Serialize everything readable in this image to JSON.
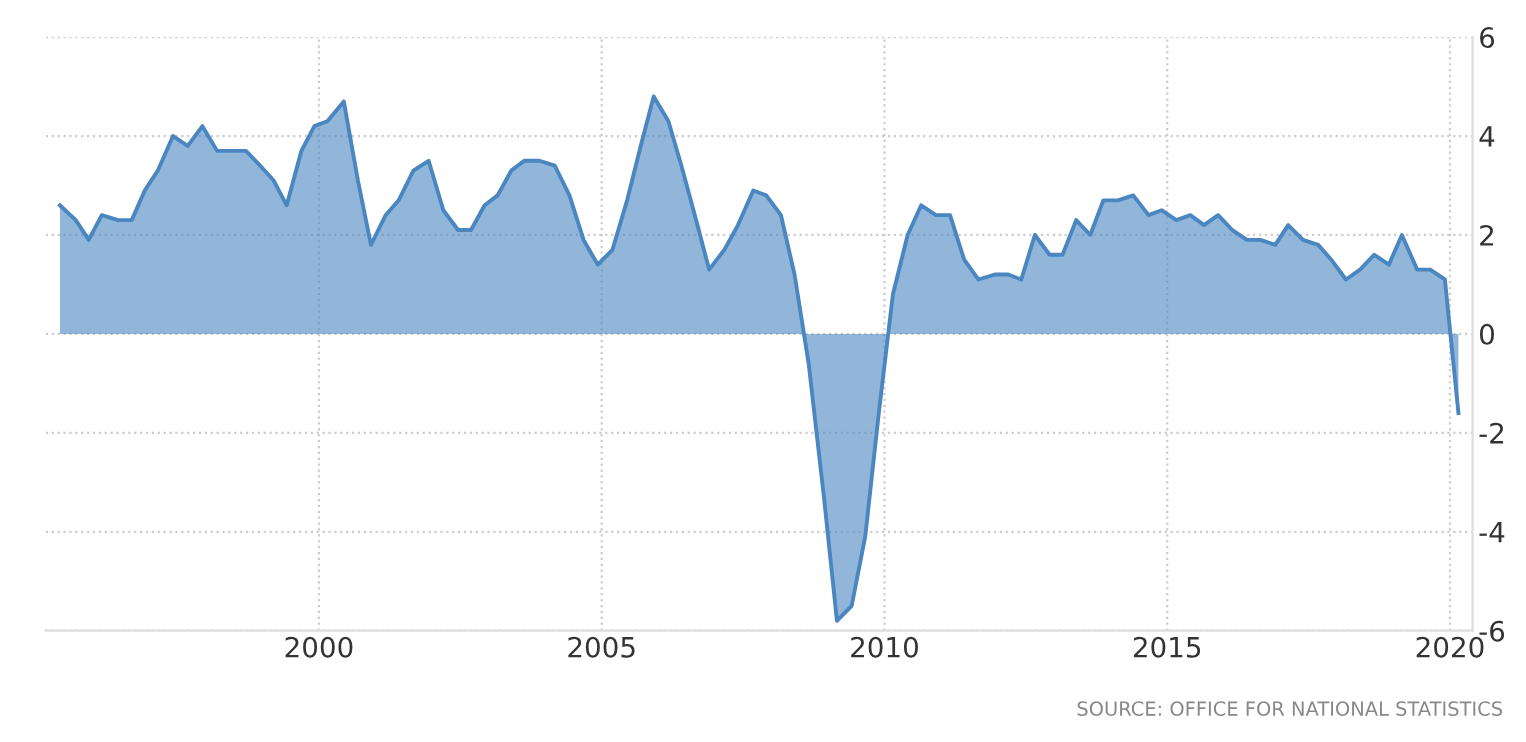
{
  "chart_data": {
    "type": "area",
    "x": [
      1995.42,
      1995.7,
      1995.93,
      1996.16,
      1996.45,
      1996.69,
      1996.92,
      1997.15,
      1997.42,
      1997.68,
      1997.94,
      1998.2,
      1998.71,
      1998.96,
      1999.2,
      1999.43,
      1999.69,
      1999.92,
      2000.15,
      2000.44,
      2000.69,
      2000.92,
      2001.18,
      2001.41,
      2001.67,
      2001.94,
      2002.2,
      2002.46,
      2002.69,
      2002.93,
      2003.16,
      2003.4,
      2003.63,
      2003.9,
      2004.17,
      2004.43,
      2004.68,
      2004.93,
      2005.19,
      2005.45,
      2005.69,
      2005.92,
      2006.18,
      2006.41,
      2006.67,
      2006.9,
      2007.17,
      2007.41,
      2007.68,
      2007.91,
      2008.17,
      2008.41,
      2008.66,
      2008.93,
      2009.16,
      2009.42,
      2009.66,
      2009.9,
      2010.15,
      2010.41,
      2010.65,
      2010.91,
      2011.16,
      2011.41,
      2011.66,
      2011.95,
      2012.19,
      2012.42,
      2012.66,
      2012.92,
      2013.15,
      2013.39,
      2013.64,
      2013.87,
      2014.13,
      2014.4,
      2014.67,
      2014.9,
      2015.16,
      2015.41,
      2015.65,
      2015.9,
      2016.15,
      2016.41,
      2016.65,
      2016.91,
      2017.14,
      2017.4,
      2017.67,
      2017.9,
      2018.16,
      2018.41,
      2018.66,
      2018.92,
      2019.15,
      2019.42,
      2019.65,
      2019.91,
      2020.15
    ],
    "values": [
      2.6,
      2.3,
      1.9,
      2.4,
      2.3,
      2.3,
      2.9,
      3.3,
      4.0,
      3.8,
      4.2,
      3.7,
      3.7,
      3.4,
      3.1,
      2.6,
      3.7,
      4.2,
      4.3,
      4.7,
      3.1,
      1.8,
      2.4,
      2.7,
      3.3,
      3.5,
      2.5,
      2.1,
      2.1,
      2.6,
      2.8,
      3.3,
      3.5,
      3.5,
      3.4,
      2.8,
      1.9,
      1.4,
      1.7,
      2.7,
      3.8,
      4.8,
      4.3,
      3.4,
      2.3,
      1.3,
      1.7,
      2.2,
      2.9,
      2.8,
      2.4,
      1.2,
      -0.6,
      -3.3,
      -5.8,
      -5.5,
      -4.1,
      -1.6,
      0.8,
      2.0,
      2.6,
      2.4,
      2.4,
      1.5,
      1.1,
      1.2,
      1.2,
      1.1,
      2.0,
      1.6,
      1.6,
      2.3,
      2.0,
      2.7,
      2.7,
      2.8,
      2.4,
      2.5,
      2.3,
      2.4,
      2.2,
      2.4,
      2.1,
      1.9,
      1.9,
      1.8,
      2.2,
      1.9,
      1.8,
      1.5,
      1.1,
      1.3,
      1.6,
      1.4,
      2.0,
      1.3,
      1.3,
      1.1,
      -1.6
    ],
    "color": "#4a86c0",
    "xlim": [
      1995.17,
      2020.4
    ],
    "xticks": [
      2000,
      2005,
      2010,
      2015,
      2020
    ],
    "ylim": [
      -6,
      6
    ],
    "yticks": [
      -6,
      -4,
      -2,
      0,
      2,
      4,
      6
    ],
    "grid": true,
    "annotations": [
      "SOURCE: OFFICE FOR NATIONAL STATISTICS"
    ]
  }
}
